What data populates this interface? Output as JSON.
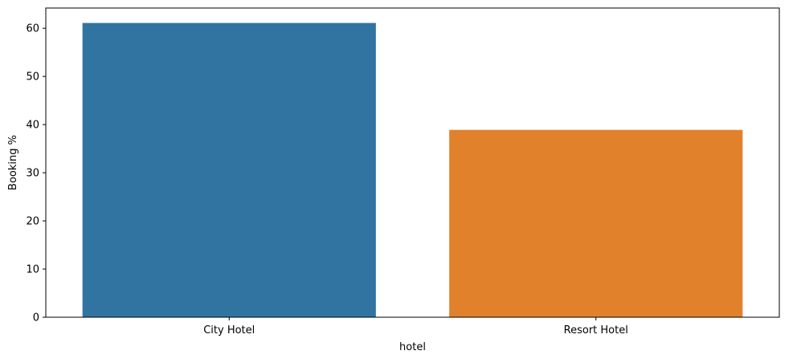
{
  "chart_data": {
    "type": "bar",
    "title": "",
    "xlabel": "hotel",
    "ylabel": "Booking %",
    "categories": [
      "City Hotel",
      "Resort Hotel"
    ],
    "values": [
      61.1,
      38.9
    ],
    "colors": [
      "#3274a1",
      "#e1812c"
    ],
    "ylim": [
      0,
      64.2
    ],
    "yticks": [
      0,
      10,
      20,
      30,
      40,
      50,
      60
    ],
    "grid": false,
    "legend": "none"
  }
}
